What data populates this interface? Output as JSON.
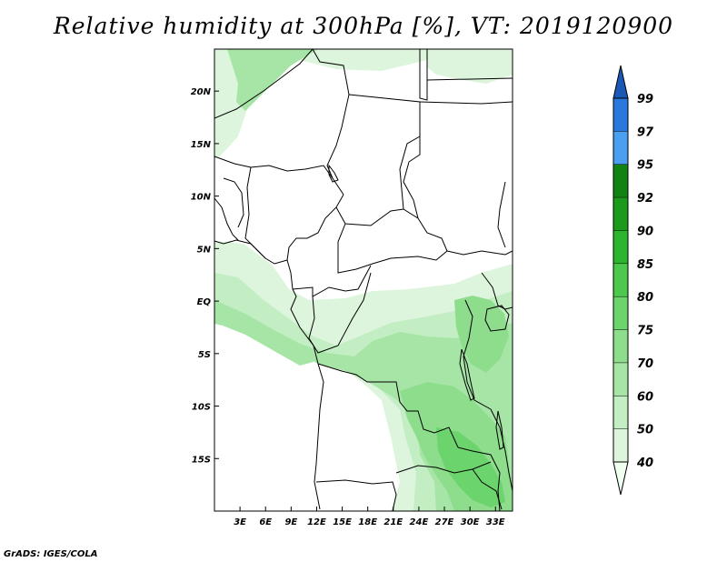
{
  "title": "Relative humidity at 300hPa [%], VT: 2019120900",
  "credit": "GrADS: IGES/COLA",
  "map": {
    "lon_range": [
      0,
      35
    ],
    "lat_range": [
      -20,
      24
    ],
    "lon_ticks": [
      "3E",
      "6E",
      "9E",
      "12E",
      "15E",
      "18E",
      "21E",
      "24E",
      "27E",
      "30E",
      "33E"
    ],
    "lat_ticks": [
      "20N",
      "15N",
      "10N",
      "5N",
      "EQ",
      "5S",
      "10S",
      "15S"
    ],
    "border_color": "#000000"
  },
  "colorbar": {
    "levels": [
      "40",
      "50",
      "60",
      "70",
      "75",
      "80",
      "85",
      "90",
      "92",
      "95",
      "97",
      "99"
    ],
    "colors": [
      "#f0fff0",
      "#dcf5dc",
      "#c3edc3",
      "#a7e5a7",
      "#8ddd8d",
      "#6cd46c",
      "#4cc94c",
      "#2db62d",
      "#1c9a1c",
      "#128212",
      "#4a9ff0",
      "#2878dd",
      "#1a58b8"
    ]
  }
}
